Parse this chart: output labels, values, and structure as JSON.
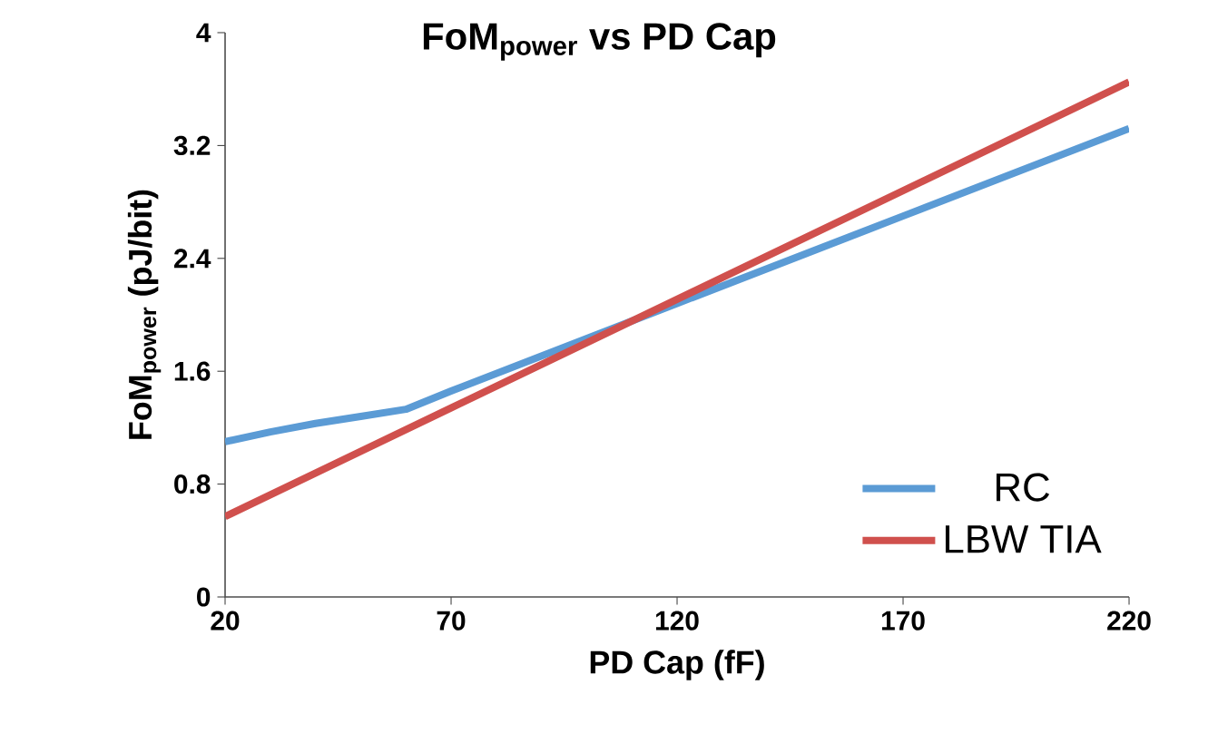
{
  "chart_data": {
    "type": "line",
    "title": "FoM$_{power}$ vs PD Cap",
    "xlabel": "PD Cap (fF)",
    "ylabel": "FoM$_{power}$ (pJ/bit)",
    "xlim": [
      20,
      220
    ],
    "ylim": [
      0,
      4
    ],
    "xticks": [
      20,
      70,
      120,
      170,
      220
    ],
    "yticks": [
      0,
      0.8,
      1.6,
      2.4,
      3.2,
      4
    ],
    "grid": false,
    "legend": "bottom right",
    "marker": "none",
    "line_style": "solid",
    "series": [
      {
        "name": "RC",
        "color": "#5b9bd5",
        "x": [
          20,
          30,
          40,
          50,
          60,
          70,
          120,
          170,
          220
        ],
        "values": [
          1.1,
          1.17,
          1.23,
          1.28,
          1.33,
          1.46,
          2.08,
          2.7,
          3.32
        ]
      },
      {
        "name": "LBW TIA",
        "color": "#d0504d",
        "x": [
          20,
          70,
          120,
          170,
          220
        ],
        "values": [
          0.57,
          1.34,
          2.11,
          2.88,
          3.65
        ]
      }
    ]
  }
}
